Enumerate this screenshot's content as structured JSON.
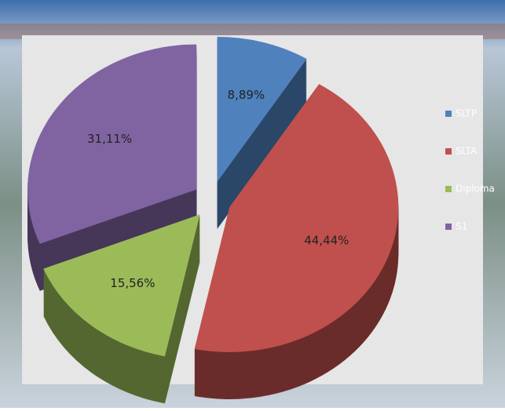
{
  "chart_data": {
    "type": "pie",
    "categories": [
      "SLTP",
      "SLTA",
      "Diploma",
      "S1"
    ],
    "values": [
      8.89,
      44.44,
      15.56,
      31.11
    ],
    "value_labels": [
      "8,89%",
      "44,44%",
      "15,56%",
      "31,11%"
    ],
    "colors": [
      "#4f81bd",
      "#c0504d",
      "#9bbb59",
      "#8064a2"
    ],
    "legend": "right"
  }
}
